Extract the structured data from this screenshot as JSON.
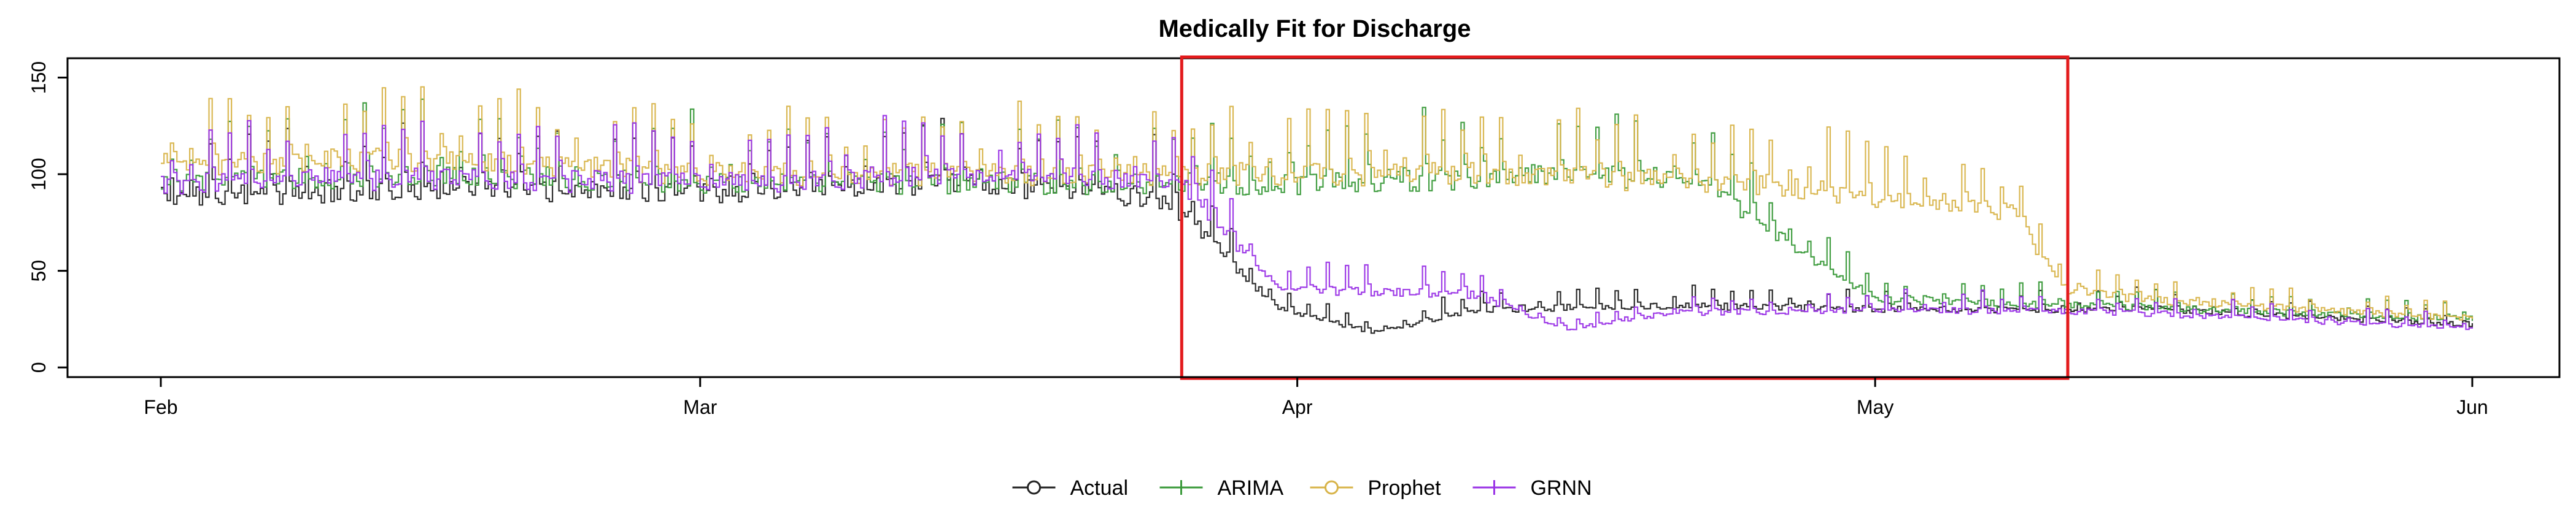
{
  "chart_data": {
    "type": "line",
    "title": "Medically Fit for Discharge",
    "xlabel": "",
    "ylabel": "",
    "x_range": [
      "2019-02-01",
      "2019-06-01"
    ],
    "x_ticks": [
      {
        "label": "Feb",
        "date": "2019-02-01"
      },
      {
        "label": "Mar",
        "date": "2019-03-01"
      },
      {
        "label": "Apr",
        "date": "2019-04-01"
      },
      {
        "label": "May",
        "date": "2019-05-01"
      },
      {
        "label": "Jun",
        "date": "2019-06-01"
      }
    ],
    "ylim": [
      -5,
      160
    ],
    "y_ticks": [
      0,
      50,
      100,
      150
    ],
    "highlight": {
      "start": "2019-03-26",
      "end": "2019-05-11",
      "color": "#e31a1c"
    },
    "legend_position": "bottom-center",
    "series": [
      {
        "name": "Actual",
        "color": "#222222",
        "marker": "circle",
        "segments": [
          {
            "date": "2019-02-01",
            "base": 88
          },
          {
            "date": "2019-02-15",
            "base": 92
          },
          {
            "date": "2019-03-01",
            "base": 90
          },
          {
            "date": "2019-03-15",
            "base": 95
          },
          {
            "date": "2019-03-24",
            "base": 88
          },
          {
            "date": "2019-03-26",
            "base": 80
          },
          {
            "date": "2019-03-31",
            "base": 30
          },
          {
            "date": "2019-04-05",
            "base": 18
          },
          {
            "date": "2019-04-10",
            "base": 30
          },
          {
            "date": "2019-04-20",
            "base": 32
          },
          {
            "date": "2019-05-01",
            "base": 30
          },
          {
            "date": "2019-05-15",
            "base": 30
          },
          {
            "date": "2019-06-01",
            "base": 22
          }
        ]
      },
      {
        "name": "ARIMA",
        "color": "#3a9a3a",
        "marker": "plus",
        "segments": [
          {
            "date": "2019-02-01",
            "base": 95
          },
          {
            "date": "2019-02-15",
            "base": 100
          },
          {
            "date": "2019-03-01",
            "base": 95
          },
          {
            "date": "2019-03-15",
            "base": 95
          },
          {
            "date": "2019-03-26",
            "base": 95
          },
          {
            "date": "2019-04-05",
            "base": 95
          },
          {
            "date": "2019-04-15",
            "base": 100
          },
          {
            "date": "2019-04-22",
            "base": 95
          },
          {
            "date": "2019-04-27",
            "base": 60
          },
          {
            "date": "2019-05-01",
            "base": 35
          },
          {
            "date": "2019-05-11",
            "base": 32
          },
          {
            "date": "2019-06-01",
            "base": 25
          }
        ]
      },
      {
        "name": "Prophet",
        "color": "#d8b44a",
        "marker": "circle",
        "segments": [
          {
            "date": "2019-02-01",
            "base": 105
          },
          {
            "date": "2019-02-15",
            "base": 108
          },
          {
            "date": "2019-03-01",
            "base": 100
          },
          {
            "date": "2019-03-15",
            "base": 100
          },
          {
            "date": "2019-03-26",
            "base": 100
          },
          {
            "date": "2019-04-10",
            "base": 100
          },
          {
            "date": "2019-04-25",
            "base": 95
          },
          {
            "date": "2019-05-08",
            "base": 80
          },
          {
            "date": "2019-05-11",
            "base": 40
          },
          {
            "date": "2019-05-15",
            "base": 35
          },
          {
            "date": "2019-06-01",
            "base": 25
          }
        ]
      },
      {
        "name": "GRNN",
        "color": "#9a33e6",
        "marker": "plus",
        "segments": [
          {
            "date": "2019-02-01",
            "base": 95
          },
          {
            "date": "2019-02-15",
            "base": 98
          },
          {
            "date": "2019-03-01",
            "base": 95
          },
          {
            "date": "2019-03-15",
            "base": 100
          },
          {
            "date": "2019-03-26",
            "base": 95
          },
          {
            "date": "2019-03-31",
            "base": 40
          },
          {
            "date": "2019-04-10",
            "base": 38
          },
          {
            "date": "2019-04-15",
            "base": 20
          },
          {
            "date": "2019-04-20",
            "base": 28
          },
          {
            "date": "2019-05-01",
            "base": 30
          },
          {
            "date": "2019-05-15",
            "base": 28
          },
          {
            "date": "2019-06-01",
            "base": 20
          }
        ]
      }
    ]
  }
}
